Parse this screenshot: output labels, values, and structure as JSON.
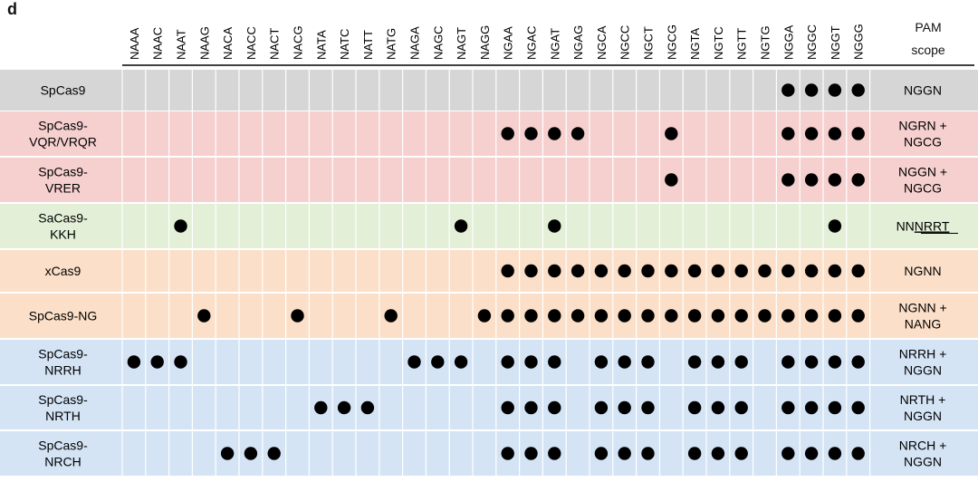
{
  "panel_label": "d",
  "scope_header": [
    "PAM",
    "scope"
  ],
  "chart_data": {
    "type": "table",
    "columns": [
      "NAAA",
      "NAAC",
      "NAAT",
      "NAAG",
      "NACA",
      "NACC",
      "NACT",
      "NACG",
      "NATA",
      "NATC",
      "NATT",
      "NATG",
      "NAGA",
      "NAGC",
      "NAGT",
      "NAGG",
      "NGAA",
      "NGAC",
      "NGAT",
      "NGAG",
      "NGCA",
      "NGCC",
      "NGCT",
      "NGCG",
      "NGTA",
      "NGTC",
      "NGTT",
      "NGTG",
      "NGGA",
      "NGGC",
      "NGGT",
      "NGGG"
    ],
    "rows": [
      {
        "name": "SpCas9",
        "label": [
          "SpCas9"
        ],
        "group": "grey",
        "scope": [
          "NGGN"
        ],
        "compatible": [
          "NGGA",
          "NGGC",
          "NGGT",
          "NGGG"
        ]
      },
      {
        "name": "SpCas9-VQR/VRQR",
        "label": [
          "SpCas9-",
          "VQR/VRQR"
        ],
        "group": "red",
        "scope": [
          "NGRN +",
          "NGCG"
        ],
        "compatible": [
          "NGAA",
          "NGAC",
          "NGAT",
          "NGAG",
          "NGCG",
          "NGGA",
          "NGGC",
          "NGGT",
          "NGGG"
        ]
      },
      {
        "name": "SpCas9-VRER",
        "label": [
          "SpCas9-",
          "VRER"
        ],
        "group": "red",
        "scope": [
          "NGGN +",
          "NGCG"
        ],
        "compatible": [
          "NGCG",
          "NGGA",
          "NGGC",
          "NGGT",
          "NGGG"
        ]
      },
      {
        "name": "SaCas9-KKH",
        "label": [
          "SaCas9-",
          "KKH"
        ],
        "group": "green",
        "scope": [
          "NN",
          "NRRT"
        ],
        "scope_underlined": "NRRT",
        "compatible": [
          "NAAT",
          "NAGT",
          "NGAT",
          "NGGT"
        ]
      },
      {
        "name": "xCas9",
        "label": [
          "xCas9"
        ],
        "group": "orange",
        "scope": [
          "NGNN"
        ],
        "compatible": [
          "NGAA",
          "NGAC",
          "NGAT",
          "NGAG",
          "NGCA",
          "NGCC",
          "NGCT",
          "NGCG",
          "NGTA",
          "NGTC",
          "NGTT",
          "NGTG",
          "NGGA",
          "NGGC",
          "NGGT",
          "NGGG"
        ]
      },
      {
        "name": "SpCas9-NG",
        "label": [
          "SpCas9-NG"
        ],
        "group": "orange",
        "scope": [
          "NGNN +",
          "NANG"
        ],
        "compatible": [
          "NAAG",
          "NACG",
          "NATG",
          "NAGG",
          "NGAA",
          "NGAC",
          "NGAT",
          "NGAG",
          "NGCA",
          "NGCC",
          "NGCT",
          "NGCG",
          "NGTA",
          "NGTC",
          "NGTT",
          "NGTG",
          "NGGA",
          "NGGC",
          "NGGT",
          "NGGG"
        ]
      },
      {
        "name": "SpCas9-NRRH",
        "label": [
          "SpCas9-",
          "NRRH"
        ],
        "group": "blue",
        "scope": [
          "NRRH +",
          "NGGN"
        ],
        "compatible": [
          "NAAA",
          "NAAC",
          "NAAT",
          "NAGA",
          "NAGC",
          "NAGT",
          "NGAA",
          "NGAC",
          "NGAT",
          "NGCA",
          "NGCC",
          "NGCT",
          "NGTA",
          "NGTC",
          "NGTT",
          "NGGA",
          "NGGC",
          "NGGT",
          "NGGG"
        ]
      },
      {
        "name": "SpCas9-NRTH",
        "label": [
          "SpCas9-",
          "NRTH"
        ],
        "group": "blue",
        "scope": [
          "NRTH +",
          "NGGN"
        ],
        "compatible": [
          "NATA",
          "NATC",
          "NATT",
          "NGAA",
          "NGAC",
          "NGAT",
          "NGCA",
          "NGCC",
          "NGCT",
          "NGTA",
          "NGTC",
          "NGTT",
          "NGGA",
          "NGGC",
          "NGGT",
          "NGGG"
        ]
      },
      {
        "name": "SpCas9-NRCH",
        "label": [
          "SpCas9-",
          "NRCH"
        ],
        "group": "blue",
        "scope": [
          "NRCH +",
          "NGGN"
        ],
        "compatible": [
          "NACA",
          "NACC",
          "NACT",
          "NGAA",
          "NGAC",
          "NGAT",
          "NGCA",
          "NGCC",
          "NGCT",
          "NGTA",
          "NGTC",
          "NGTT",
          "NGGA",
          "NGGC",
          "NGGT",
          "NGGG"
        ]
      }
    ]
  },
  "colors": {
    "grey": "#d6d6d6",
    "red": "#f6cfcf",
    "green": "#e3efd7",
    "orange": "#fbdfc8",
    "blue": "#d4e4f5",
    "dot": "#000000",
    "gridline": "#ffffff"
  }
}
